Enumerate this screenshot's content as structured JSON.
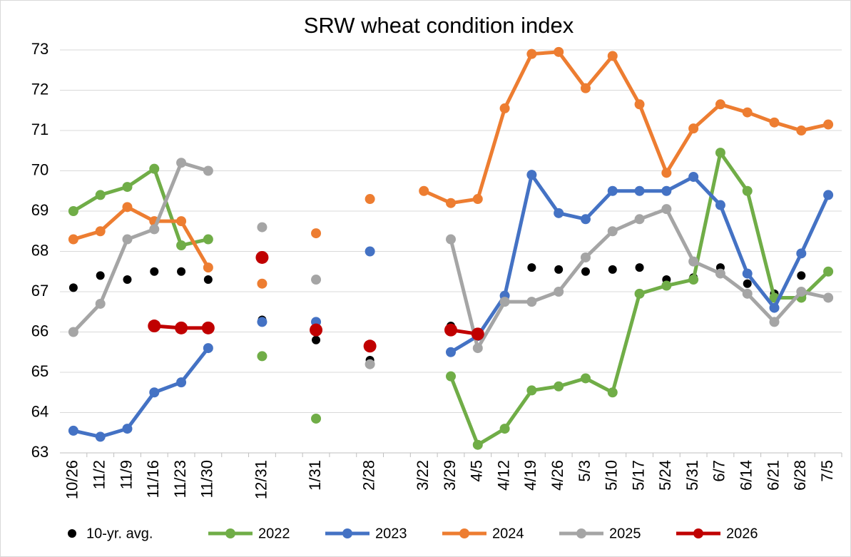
{
  "chart_data": {
    "type": "line",
    "title": "SRW wheat condition index",
    "categories": [
      "10/26",
      "11/2",
      "11/9",
      "11/16",
      "11/23",
      "11/30",
      null,
      "12/31",
      null,
      "1/31",
      null,
      "2/28",
      null,
      "3/22",
      "3/29",
      "4/5",
      "4/12",
      "4/19",
      "4/26",
      "5/3",
      "5/10",
      "5/17",
      "5/24",
      "5/31",
      "6/7",
      "6/14",
      "6/21",
      "6/28",
      "7/5"
    ],
    "series": [
      {
        "name": "10-yr. avg.",
        "type": "scatter",
        "color": "#000000",
        "marker_size": 6,
        "values": [
          67.1,
          67.4,
          67.3,
          67.5,
          67.5,
          67.3,
          null,
          66.3,
          null,
          65.8,
          null,
          65.3,
          null,
          null,
          66.15,
          65.95,
          66.8,
          67.6,
          67.55,
          67.5,
          67.55,
          67.6,
          67.3,
          67.35,
          67.6,
          67.2,
          66.95,
          67.4,
          67.5
        ]
      },
      {
        "name": "2022",
        "type": "line",
        "color": "#70ad47",
        "marker_size": 7,
        "values": [
          69.0,
          69.4,
          69.6,
          70.05,
          68.15,
          68.3,
          null,
          65.4,
          null,
          63.85,
          null,
          null,
          null,
          null,
          64.9,
          63.2,
          63.6,
          64.55,
          64.65,
          64.85,
          64.5,
          66.95,
          67.15,
          67.3,
          70.45,
          69.5,
          66.85,
          66.85,
          67.5
        ]
      },
      {
        "name": "2023",
        "type": "line",
        "color": "#4472c4",
        "marker_size": 7,
        "values": [
          63.55,
          63.4,
          63.6,
          64.5,
          64.75,
          65.6,
          null,
          66.25,
          null,
          66.25,
          null,
          68.0,
          null,
          null,
          65.5,
          65.9,
          66.9,
          69.9,
          68.95,
          68.8,
          69.5,
          69.5,
          69.5,
          69.85,
          69.15,
          67.45,
          66.6,
          67.95,
          69.4
        ]
      },
      {
        "name": "2024",
        "type": "line",
        "color": "#ed7d31",
        "marker_size": 7,
        "values": [
          68.3,
          68.5,
          69.1,
          68.75,
          68.75,
          67.6,
          null,
          67.2,
          null,
          68.45,
          null,
          69.3,
          null,
          69.5,
          69.2,
          69.3,
          71.55,
          72.9,
          72.95,
          72.05,
          72.85,
          71.65,
          69.95,
          71.05,
          71.65,
          71.45,
          71.2,
          71.0,
          71.15
        ]
      },
      {
        "name": "2025",
        "type": "line",
        "color": "#a5a5a5",
        "marker_size": 7,
        "values": [
          66.0,
          66.7,
          68.3,
          68.55,
          70.2,
          70.0,
          null,
          68.6,
          null,
          67.3,
          null,
          65.2,
          null,
          null,
          68.3,
          65.6,
          66.75,
          66.75,
          67.0,
          67.85,
          68.5,
          68.8,
          69.05,
          67.75,
          67.45,
          66.95,
          66.25,
          67.0,
          66.85
        ]
      },
      {
        "name": "2026",
        "type": "line",
        "color": "#c00000",
        "marker_size": 9,
        "values": [
          null,
          null,
          null,
          66.15,
          66.1,
          66.1,
          null,
          67.85,
          null,
          66.05,
          null,
          65.65,
          null,
          null,
          66.05,
          65.95,
          null,
          null,
          null,
          null,
          null,
          null,
          null,
          null,
          null,
          null,
          null,
          null,
          null
        ]
      }
    ],
    "ylim": [
      63,
      73
    ],
    "yticks": [
      63,
      64,
      65,
      66,
      67,
      68,
      69,
      70,
      71,
      72,
      73
    ],
    "grid": true,
    "legend": "bottom"
  }
}
